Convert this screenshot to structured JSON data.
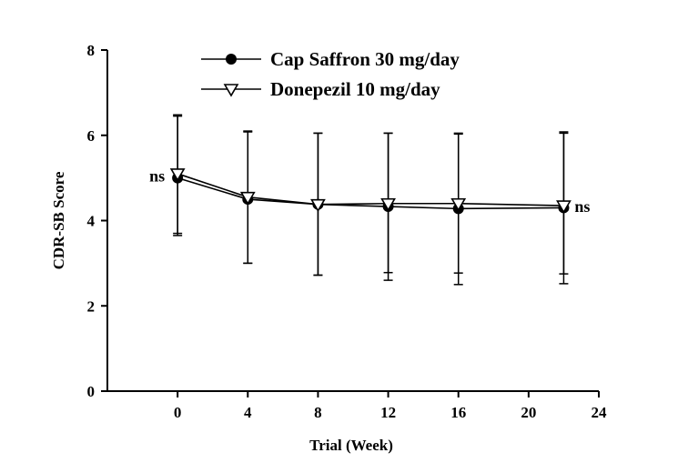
{
  "chart_data": {
    "type": "line",
    "xlabel": "Trial (Week)",
    "ylabel": "CDR-SB Score",
    "xlim": [
      -4,
      24
    ],
    "ylim": [
      0,
      8
    ],
    "xticks": [
      0,
      4,
      8,
      12,
      16,
      20,
      24
    ],
    "yticks": [
      0,
      2,
      4,
      6,
      8
    ],
    "grid": false,
    "legend_position": "top",
    "series": [
      {
        "name": "Cap Saffron 30 mg/day",
        "marker": "filled-circle",
        "x": [
          0,
          4,
          8,
          12,
          16,
          22
        ],
        "y": [
          5.0,
          4.5,
          4.38,
          4.33,
          4.28,
          4.3
        ],
        "err_upper": [
          6.45,
          6.08,
          6.05,
          6.05,
          6.03,
          6.08
        ],
        "err_lower": [
          3.7,
          3.0,
          2.72,
          2.6,
          2.5,
          2.52
        ]
      },
      {
        "name": "Donepezil 10 mg/day",
        "marker": "open-triangle-down",
        "x": [
          0,
          4,
          8,
          12,
          16,
          22
        ],
        "y": [
          5.1,
          4.55,
          4.38,
          4.4,
          4.4,
          4.35
        ],
        "err_upper": [
          6.48,
          6.1,
          6.05,
          6.05,
          6.05,
          6.05
        ],
        "err_lower": [
          3.65,
          3.0,
          2.72,
          2.78,
          2.77,
          2.75
        ]
      }
    ],
    "annotations": [
      {
        "text": "ns",
        "x": 0,
        "y": 5.05,
        "side": "left"
      },
      {
        "text": "ns",
        "x": 22,
        "y": 4.33,
        "side": "right"
      }
    ]
  }
}
